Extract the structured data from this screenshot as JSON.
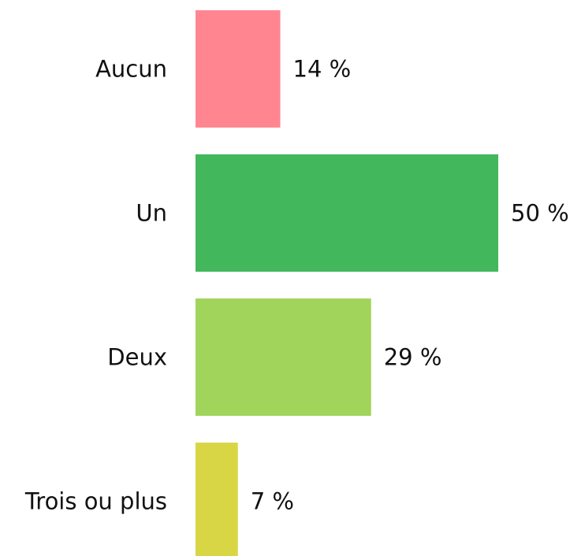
{
  "chart_data": {
    "type": "hbar",
    "categories": [
      "Aucun",
      "Un",
      "Deux",
      "Trois ou plus"
    ],
    "values": [
      14,
      50,
      29,
      7
    ],
    "value_labels": [
      "14 %",
      "50 %",
      "29 %",
      "7 %"
    ],
    "colors": [
      "#ff8691",
      "#42b75c",
      "#a0d45a",
      "#d8d645"
    ]
  }
}
